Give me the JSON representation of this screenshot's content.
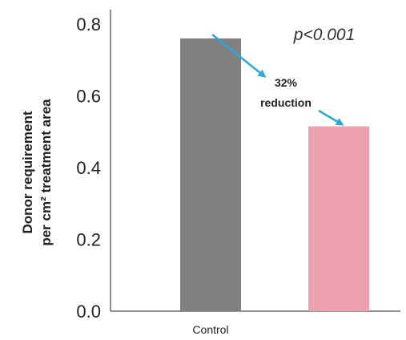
{
  "chart_data": {
    "type": "bar",
    "categories": [
      "Control",
      ""
    ],
    "values": [
      0.76,
      0.515
    ],
    "colors": [
      "#808080",
      "#eda0ad"
    ],
    "ylim": [
      0,
      0.8
    ],
    "yticks": [
      "0.0",
      "0.2",
      "0.4",
      "0.6",
      "0.8"
    ],
    "ylabel_lines": [
      "Donor requirement",
      "per cm² treatment area"
    ],
    "annotations": {
      "p_value": "p<0.001",
      "reduction_line1": "32%",
      "reduction_line2": "reduction",
      "arrow_color": "#29a9dd"
    },
    "grid": false
  }
}
